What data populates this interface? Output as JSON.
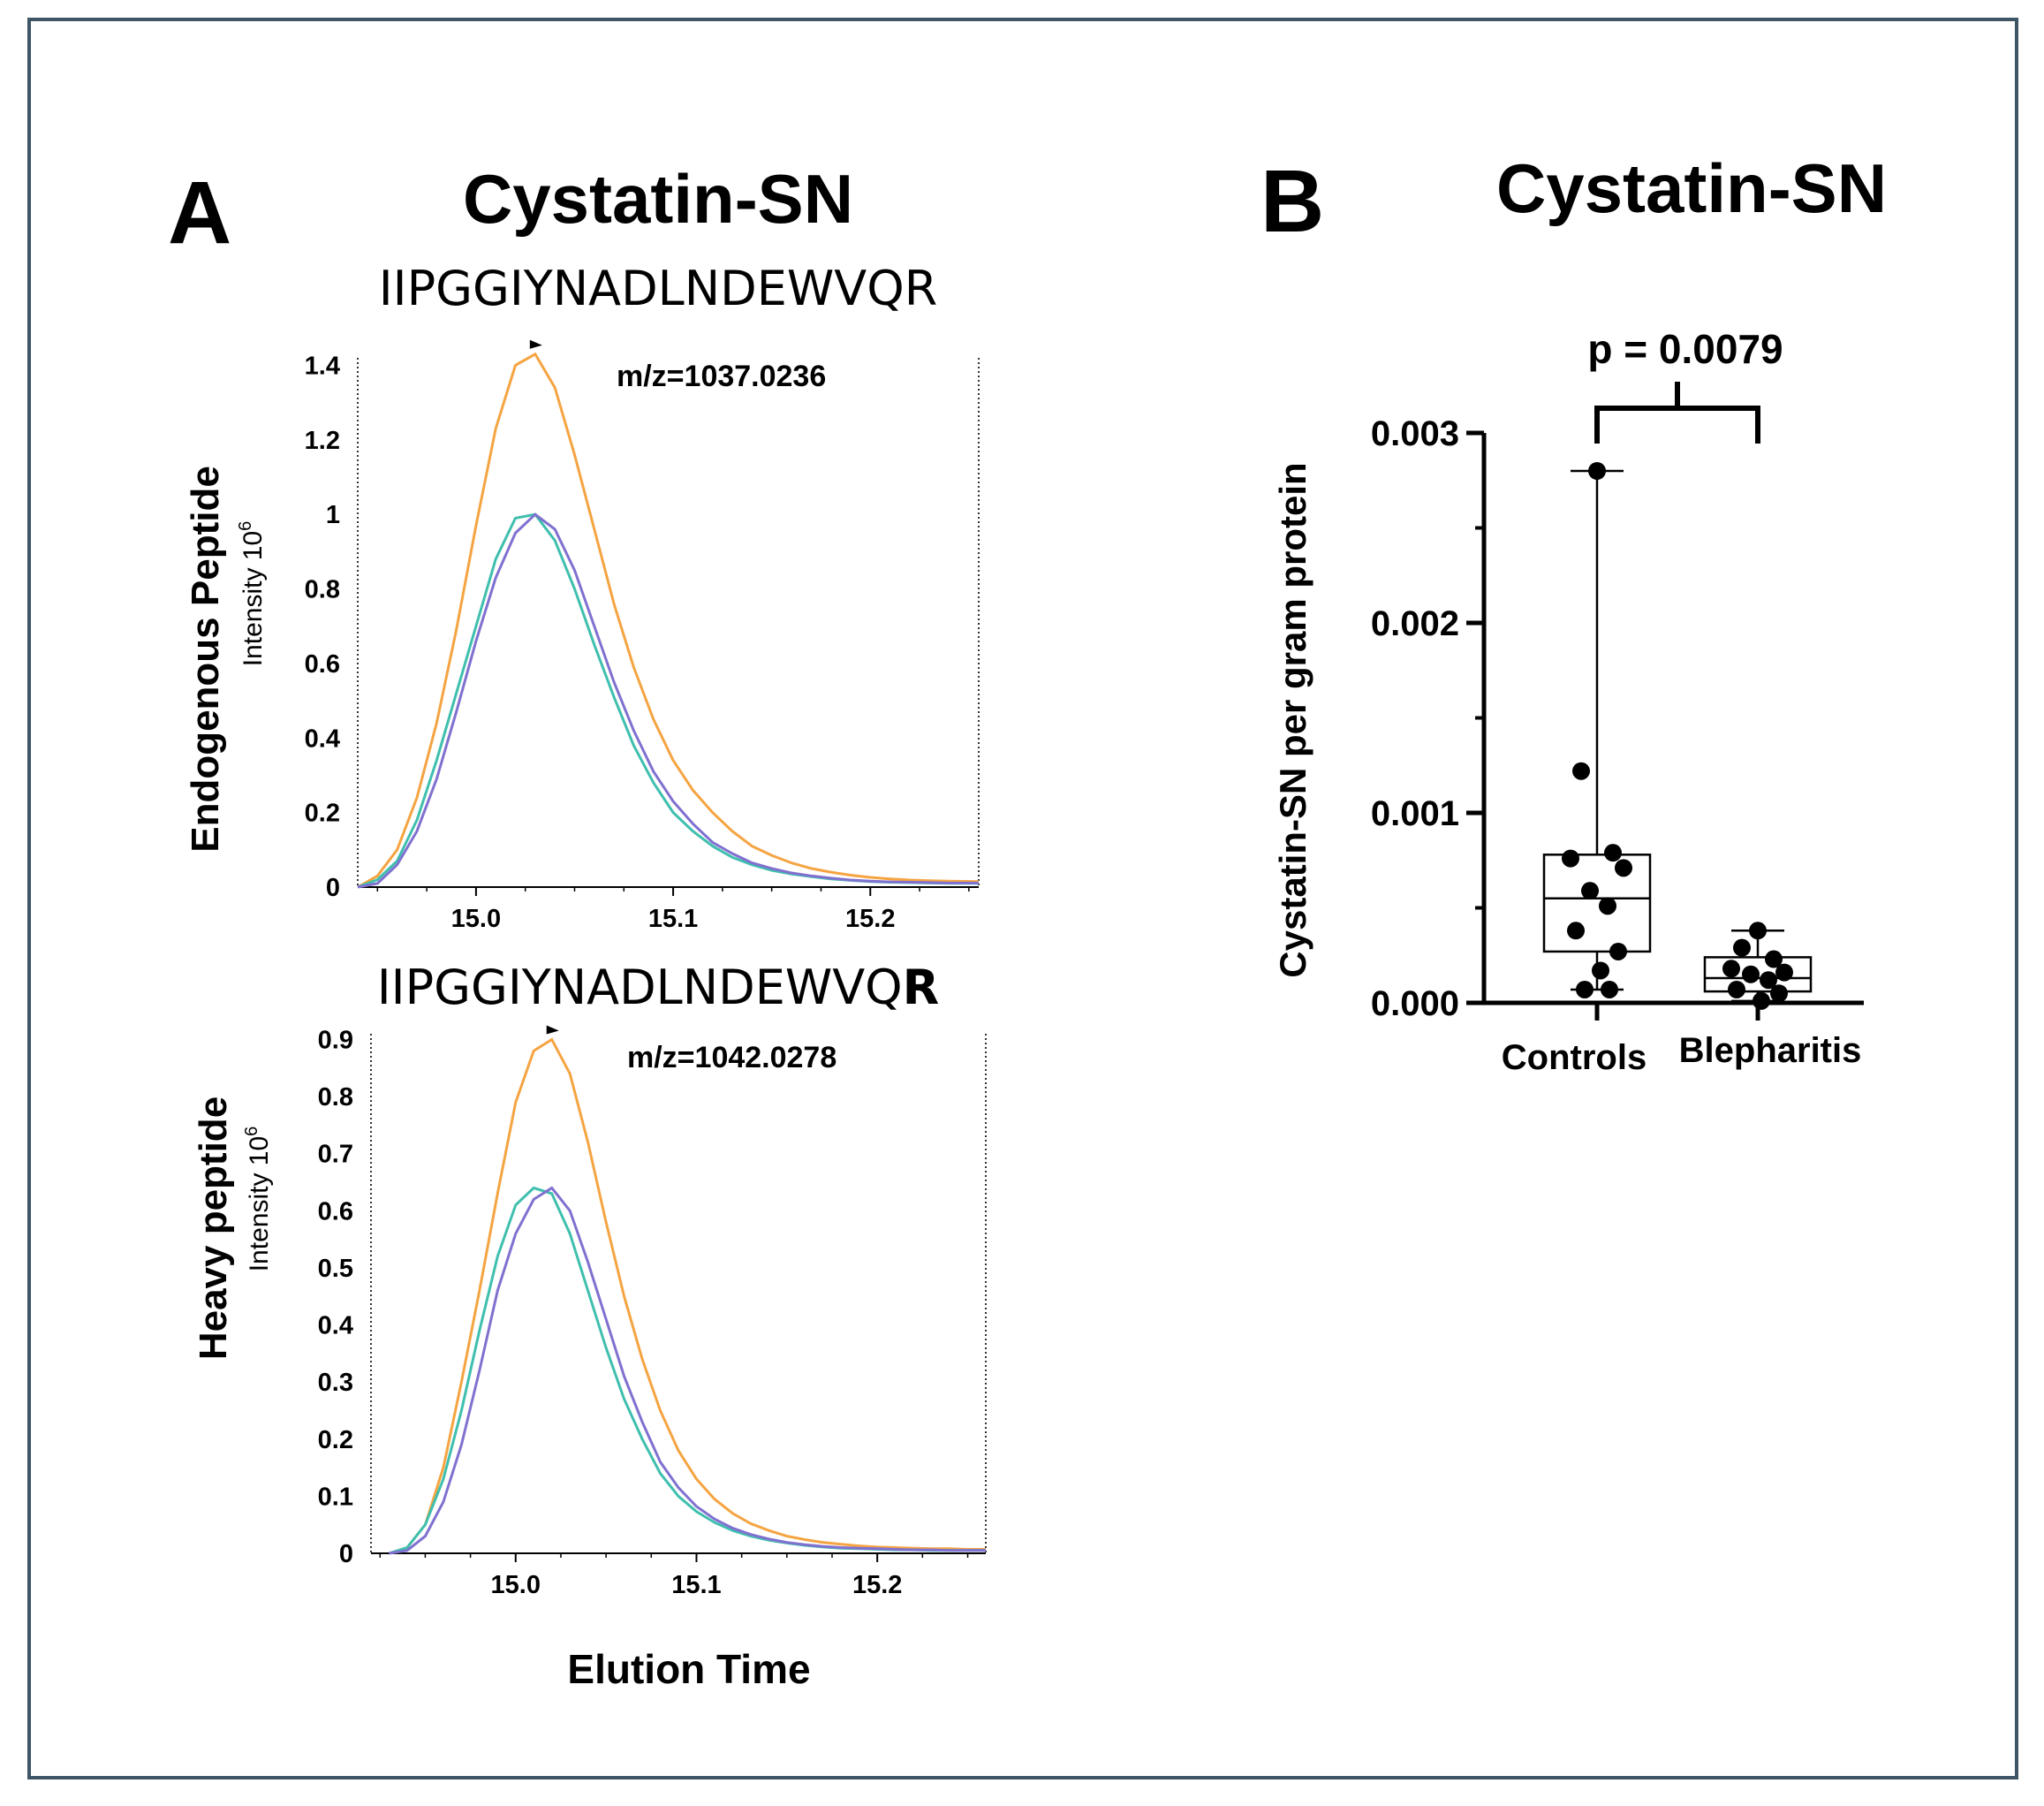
{
  "panel_a": {
    "letter": "A",
    "title": "Cystatin-SN",
    "xlabel": "Elution Time"
  },
  "panel_b": {
    "letter": "B",
    "title": "Cystatin-SN"
  },
  "colors": {
    "orange": "#f5a442",
    "teal": "#3fbfae",
    "purple": "#8070d0",
    "frame": "#3e5566"
  },
  "chart_data": [
    {
      "type": "line",
      "id": "endogenous",
      "peptide": "IIPGGIYNADLNDEWVQR",
      "ylabel": "Endogenous Peptide",
      "ylabel_sub": "Intensity 10",
      "ylabel_sub_sup": "6",
      "annotation": "m/z=1037.0236",
      "xlim": [
        14.94,
        15.255
      ],
      "ylim": [
        0,
        1.42
      ],
      "xticks": [
        "15.0",
        "15.1",
        "15.2"
      ],
      "yticks": [
        "0",
        "0.2",
        "0.4",
        "0.6",
        "0.8",
        "1",
        "1.2",
        "1.4"
      ],
      "x": [
        14.94,
        14.95,
        14.96,
        14.97,
        14.98,
        14.99,
        15.0,
        15.01,
        15.02,
        15.03,
        15.04,
        15.05,
        15.06,
        15.07,
        15.08,
        15.09,
        15.1,
        15.11,
        15.12,
        15.13,
        15.14,
        15.15,
        15.16,
        15.17,
        15.18,
        15.19,
        15.2,
        15.21,
        15.22,
        15.23,
        15.24,
        15.255
      ],
      "series": [
        {
          "name": "orange",
          "values": [
            0.0,
            0.03,
            0.1,
            0.24,
            0.44,
            0.69,
            0.97,
            1.23,
            1.4,
            1.43,
            1.34,
            1.16,
            0.96,
            0.76,
            0.59,
            0.45,
            0.34,
            0.26,
            0.2,
            0.15,
            0.11,
            0.085,
            0.065,
            0.05,
            0.04,
            0.032,
            0.026,
            0.022,
            0.019,
            0.017,
            0.016,
            0.015
          ]
        },
        {
          "name": "teal",
          "values": [
            0.0,
            0.02,
            0.07,
            0.18,
            0.34,
            0.52,
            0.7,
            0.88,
            0.99,
            1.0,
            0.93,
            0.8,
            0.65,
            0.51,
            0.38,
            0.28,
            0.2,
            0.15,
            0.11,
            0.08,
            0.06,
            0.045,
            0.035,
            0.028,
            0.022,
            0.018,
            0.015,
            0.013,
            0.012,
            0.011,
            0.01,
            0.01
          ]
        },
        {
          "name": "purple",
          "values": [
            0.0,
            0.01,
            0.06,
            0.15,
            0.29,
            0.47,
            0.66,
            0.83,
            0.95,
            1.0,
            0.96,
            0.85,
            0.7,
            0.55,
            0.42,
            0.31,
            0.23,
            0.17,
            0.12,
            0.09,
            0.065,
            0.05,
            0.038,
            0.03,
            0.024,
            0.019,
            0.016,
            0.014,
            0.013,
            0.012,
            0.011,
            0.011
          ]
        }
      ]
    },
    {
      "type": "line",
      "id": "heavy",
      "peptide": "IIPGGIYNADLNDEWVQ",
      "peptide_bold": "R",
      "ylabel": "Heavy peptide",
      "ylabel_sub": "Intensity 10",
      "ylabel_sub_sup": "6",
      "annotation": "m/z=1042.0278",
      "xlim": [
        14.92,
        15.26
      ],
      "ylim": [
        0,
        0.91
      ],
      "xticks": [
        "15.0",
        "15.1",
        "15.2"
      ],
      "yticks": [
        "0",
        "0.1",
        "0.2",
        "0.3",
        "0.4",
        "0.5",
        "0.6",
        "0.7",
        "0.8",
        "0.9"
      ],
      "x": [
        14.93,
        14.94,
        14.95,
        14.96,
        14.97,
        14.98,
        14.99,
        15.0,
        15.01,
        15.02,
        15.03,
        15.04,
        15.05,
        15.06,
        15.07,
        15.08,
        15.09,
        15.1,
        15.11,
        15.12,
        15.13,
        15.14,
        15.15,
        15.16,
        15.17,
        15.18,
        15.19,
        15.2,
        15.21,
        15.22,
        15.23,
        15.24,
        15.25,
        15.26
      ],
      "series": [
        {
          "name": "orange",
          "values": [
            0.0,
            0.01,
            0.05,
            0.15,
            0.3,
            0.46,
            0.63,
            0.79,
            0.88,
            0.9,
            0.84,
            0.72,
            0.58,
            0.45,
            0.34,
            0.25,
            0.18,
            0.13,
            0.095,
            0.07,
            0.052,
            0.04,
            0.03,
            0.024,
            0.019,
            0.016,
            0.013,
            0.011,
            0.01,
            0.009,
            0.008,
            0.008,
            0.007,
            0.007
          ]
        },
        {
          "name": "teal",
          "values": [
            0.0,
            0.01,
            0.05,
            0.13,
            0.25,
            0.39,
            0.52,
            0.61,
            0.64,
            0.63,
            0.56,
            0.46,
            0.36,
            0.27,
            0.2,
            0.14,
            0.1,
            0.073,
            0.054,
            0.04,
            0.03,
            0.023,
            0.018,
            0.014,
            0.011,
            0.009,
            0.008,
            0.007,
            0.006,
            0.006,
            0.005,
            0.005,
            0.005,
            0.005
          ]
        },
        {
          "name": "purple",
          "values": [
            0.0,
            0.005,
            0.03,
            0.09,
            0.19,
            0.32,
            0.46,
            0.56,
            0.62,
            0.64,
            0.6,
            0.51,
            0.41,
            0.31,
            0.23,
            0.16,
            0.115,
            0.082,
            0.06,
            0.044,
            0.033,
            0.025,
            0.019,
            0.015,
            0.012,
            0.01,
            0.009,
            0.008,
            0.007,
            0.006,
            0.006,
            0.005,
            0.005,
            0.005
          ]
        }
      ]
    },
    {
      "type": "box",
      "id": "box",
      "ylabel": "Cystatin-SN per gram protein",
      "ylim": [
        0,
        0.003
      ],
      "yticks": [
        "0.000",
        "0.001",
        "0.002",
        "0.003"
      ],
      "categories": [
        "Controls",
        "Blepharitis"
      ],
      "pvalue": "p = 0.0079",
      "groups": [
        {
          "name": "Controls",
          "min": 7e-05,
          "q1": 0.00027,
          "median": 0.00055,
          "q3": 0.00078,
          "max": 0.0028,
          "points": [
            0.0028,
            0.00122,
            0.00079,
            0.00076,
            0.00071,
            0.00059,
            0.00051,
            0.00038,
            0.00027,
            0.00017,
            7e-05,
            7e-05
          ]
        },
        {
          "name": "Blepharitis",
          "min": 1e-05,
          "q1": 6e-05,
          "median": 0.00013,
          "q3": 0.00024,
          "max": 0.00038,
          "points": [
            0.00038,
            0.00029,
            0.00023,
            0.00018,
            0.00016,
            0.00015,
            0.00012,
            7e-05,
            5e-05,
            1e-05
          ]
        }
      ]
    }
  ]
}
